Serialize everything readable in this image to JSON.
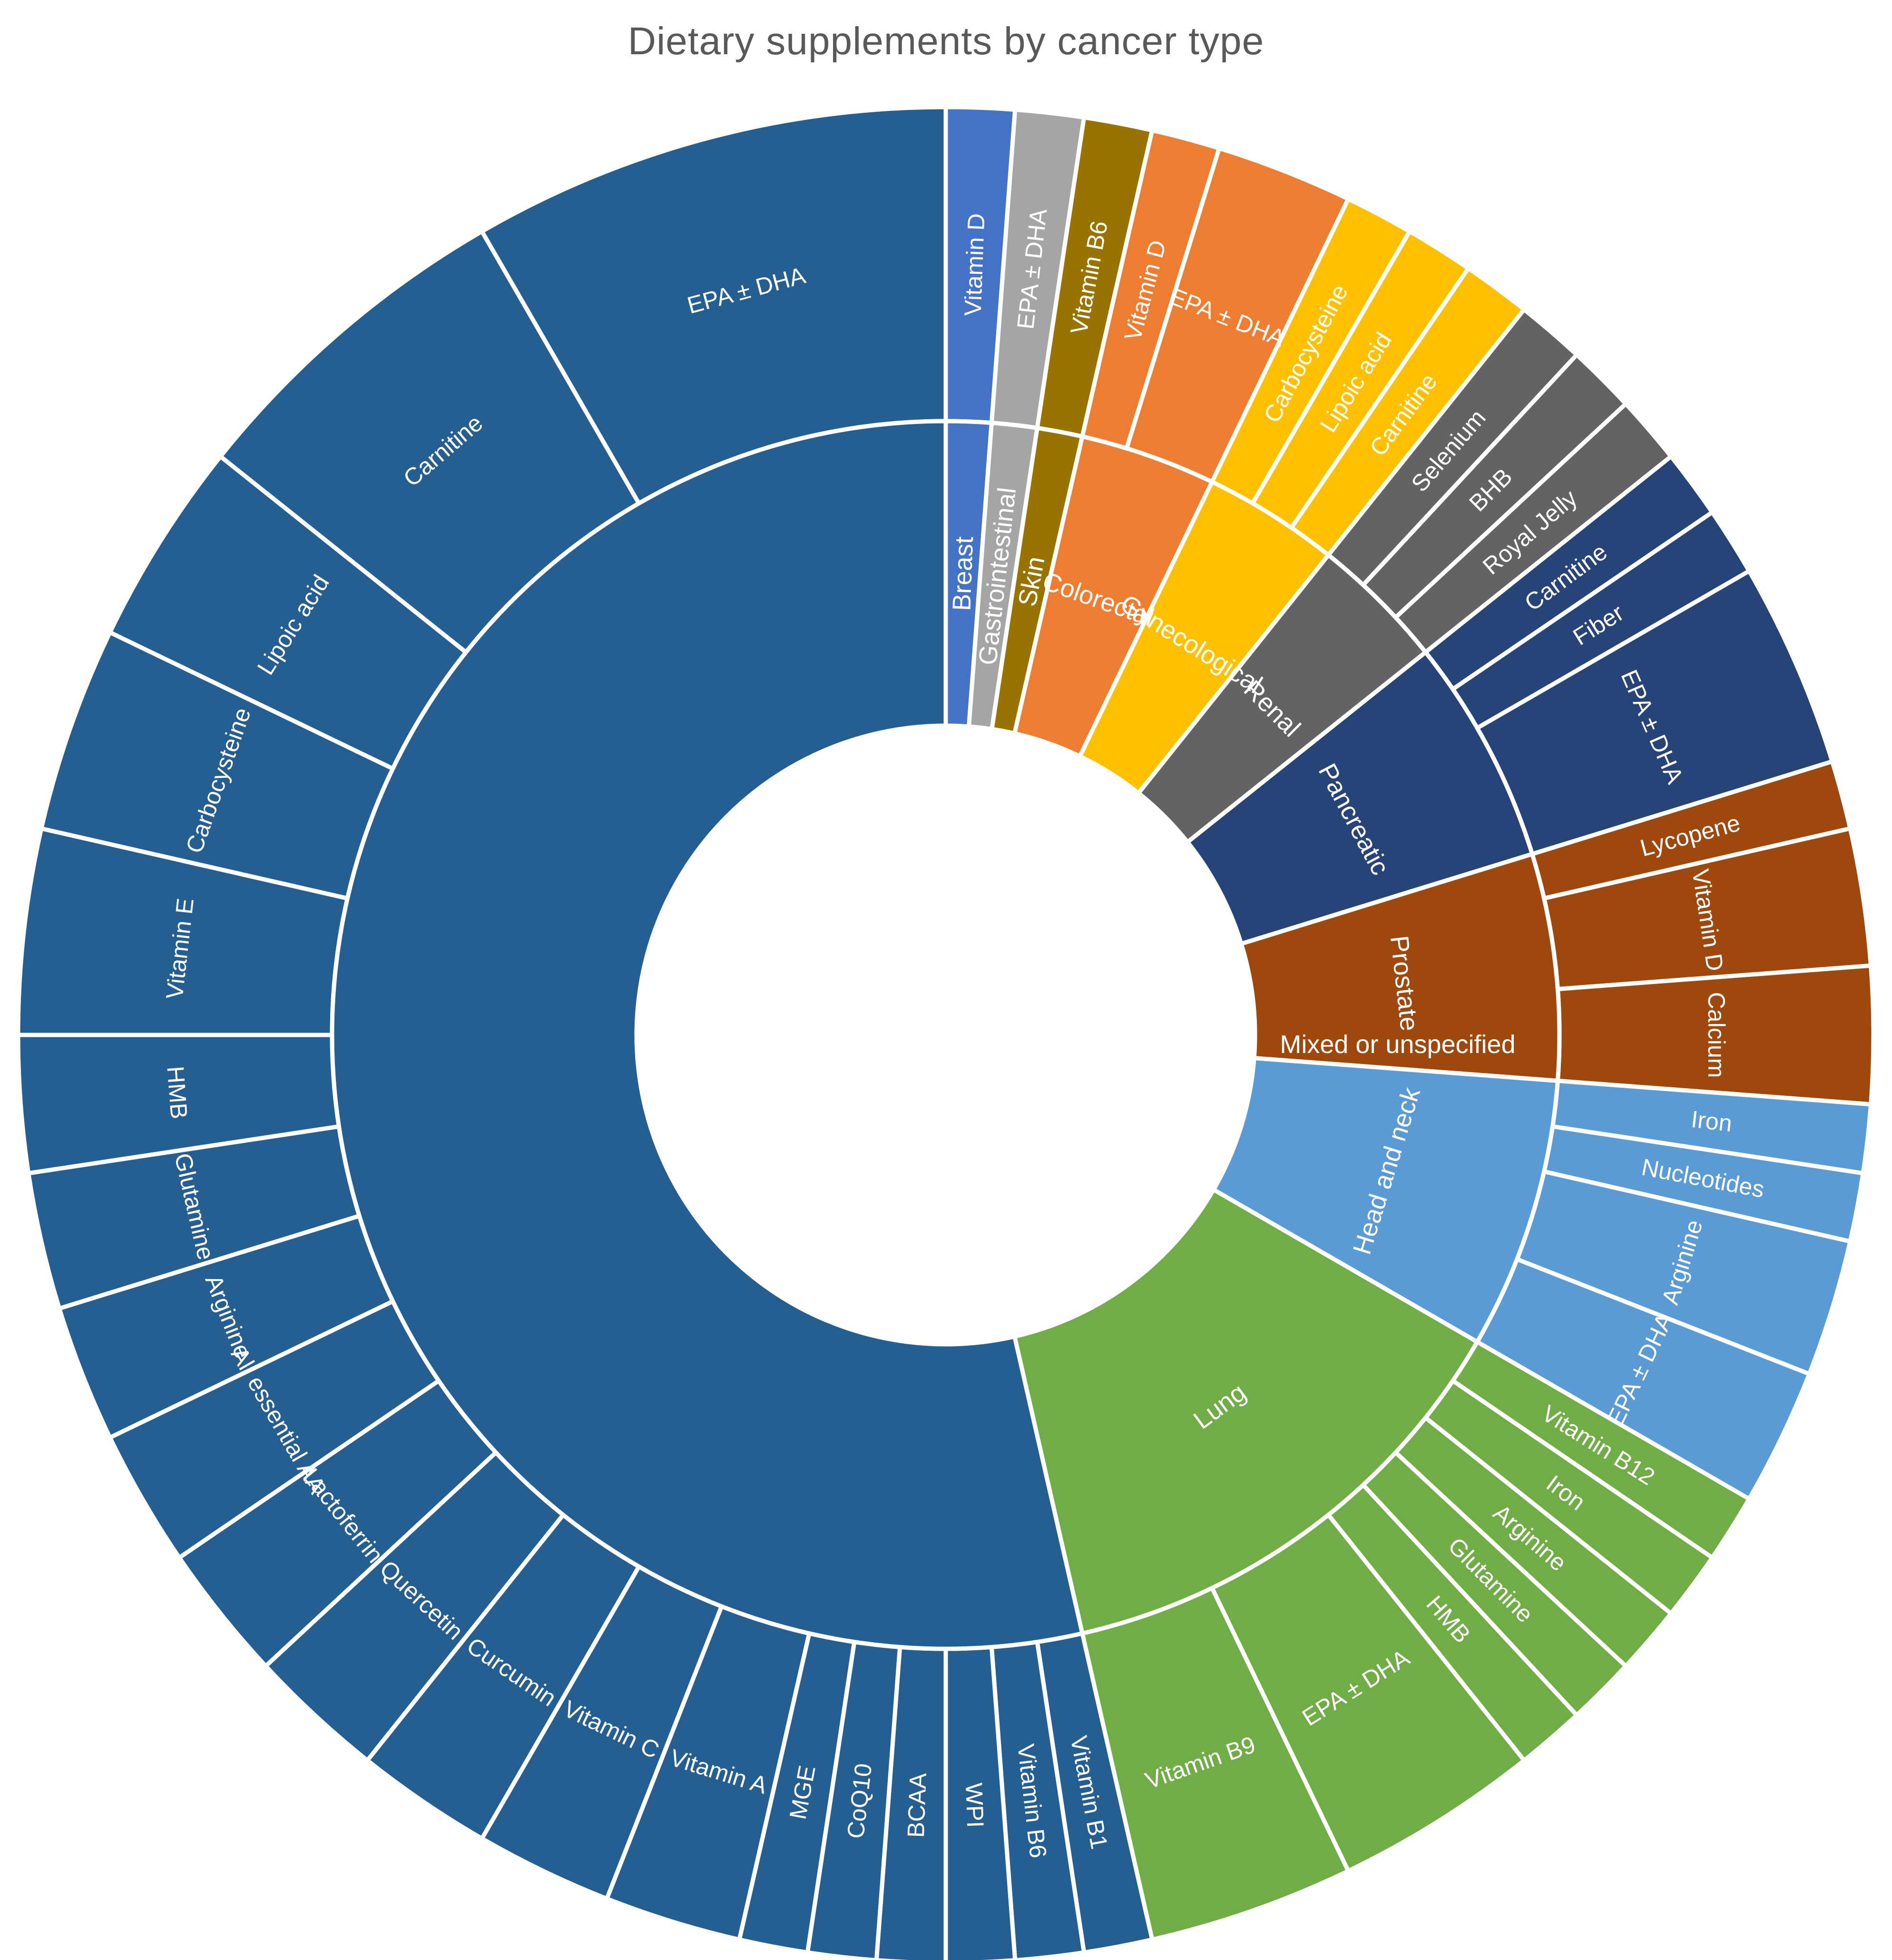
{
  "chart_data": {
    "type": "sunburst",
    "title": "Dietary supplements by cancer type",
    "categories": [
      {
        "name": "Breast",
        "color": "#4472C4",
        "items": [
          {
            "name": "Vitamin D",
            "value": 1
          }
        ]
      },
      {
        "name": "Gastrointestinal",
        "color": "#A5A5A5",
        "items": [
          {
            "name": "EPA ± DHA",
            "value": 1
          }
        ]
      },
      {
        "name": "Skin",
        "color": "#997300",
        "items": [
          {
            "name": "Vitamin B6",
            "value": 1
          }
        ]
      },
      {
        "name": "Colorectal",
        "color": "#ED7D31",
        "items": [
          {
            "name": "Vitamin D",
            "value": 1
          },
          {
            "name": "EPA ± DHA",
            "value": 2
          }
        ]
      },
      {
        "name": "Gynecological",
        "color": "#FFC000",
        "items": [
          {
            "name": "Carbocysteine",
            "value": 1
          },
          {
            "name": "Lipoic acid",
            "value": 1
          },
          {
            "name": "Carnitine",
            "value": 1
          }
        ]
      },
      {
        "name": "Renal",
        "color": "#636363",
        "items": [
          {
            "name": "Selenium",
            "value": 1
          },
          {
            "name": "BHB",
            "value": 1
          },
          {
            "name": "Royal Jelly",
            "value": 1
          }
        ]
      },
      {
        "name": "Pancreatic",
        "color": "#264478",
        "items": [
          {
            "name": "Carnitine",
            "value": 1
          },
          {
            "name": "Fiber",
            "value": 1
          },
          {
            "name": "EPA ± DHA",
            "value": 3
          }
        ]
      },
      {
        "name": "Prostate",
        "color": "#9E480E",
        "items": [
          {
            "name": "Lycopene",
            "value": 1
          },
          {
            "name": "Vitamin D",
            "value": 2
          },
          {
            "name": "Calcium",
            "value": 2
          }
        ]
      },
      {
        "name": "Head and neck",
        "color": "#5B9BD5",
        "items": [
          {
            "name": "Iron",
            "value": 1
          },
          {
            "name": "Nucleotides",
            "value": 1
          },
          {
            "name": "Arginine",
            "value": 2
          },
          {
            "name": "EPA ± DHA",
            "value": 2
          }
        ]
      },
      {
        "name": "Lung",
        "color": "#70AD47",
        "items": [
          {
            "name": "Vitamin B12",
            "value": 1
          },
          {
            "name": "Iron",
            "value": 1
          },
          {
            "name": "Arginine",
            "value": 1
          },
          {
            "name": "Glutamine",
            "value": 1
          },
          {
            "name": "HMB",
            "value": 1
          },
          {
            "name": "EPA ± DHA",
            "value": 3
          },
          {
            "name": "Vitamin B9",
            "value": 3
          }
        ]
      },
      {
        "name": "Mixed or unspecified",
        "color": "#255E91",
        "items": [
          {
            "name": "Vitamin B1",
            "value": 1
          },
          {
            "name": "Vitamin B6",
            "value": 1
          },
          {
            "name": "WPI",
            "value": 1
          },
          {
            "name": "BCAA",
            "value": 1
          },
          {
            "name": "CoQ10",
            "value": 1
          },
          {
            "name": "MGE",
            "value": 1
          },
          {
            "name": "Vitamin A",
            "value": 2
          },
          {
            "name": "Vitamin C",
            "value": 2
          },
          {
            "name": "Curcumin",
            "value": 2
          },
          {
            "name": "Quercetin",
            "value": 2
          },
          {
            "name": "Lactoferrin",
            "value": 2
          },
          {
            "name": "All essential AA",
            "value": 2
          },
          {
            "name": "Arginine",
            "value": 2
          },
          {
            "name": "Glutamine",
            "value": 2
          },
          {
            "name": "HMB",
            "value": 2
          },
          {
            "name": "Vitamin E",
            "value": 3
          },
          {
            "name": "Carbocysteine",
            "value": 3
          },
          {
            "name": "Lipoic acid",
            "value": 3
          },
          {
            "name": "Carnitine",
            "value": 5
          },
          {
            "name": "EPA ± DHA",
            "value": 7
          }
        ]
      }
    ]
  }
}
